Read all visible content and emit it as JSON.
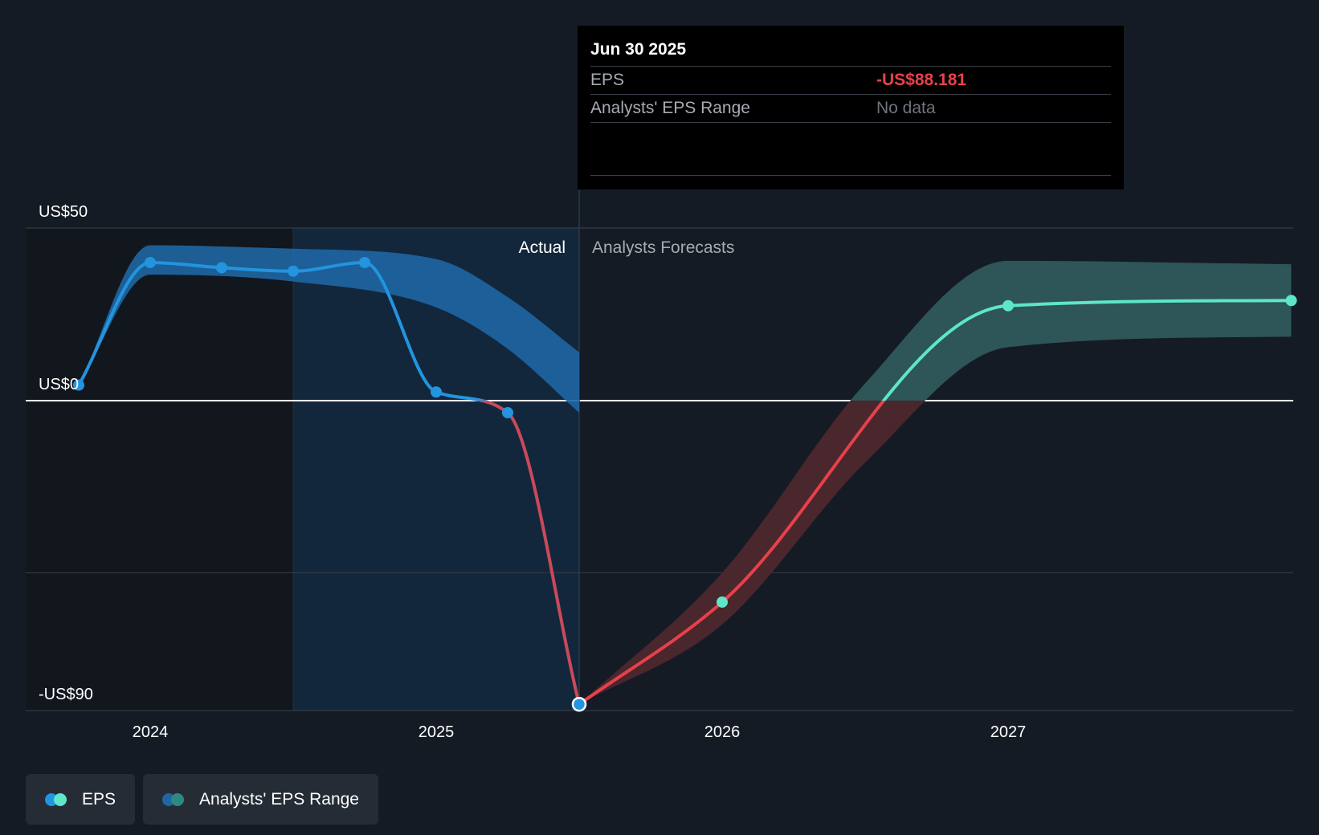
{
  "chart_data": {
    "type": "line",
    "x_axis": {
      "tick_labels": [
        "2024",
        "2025",
        "2026",
        "2027"
      ],
      "tick_years": [
        2024,
        2025,
        2026,
        2027
      ],
      "range": [
        2023.72,
        2027.99
      ]
    },
    "y_axis": {
      "tick_labels": [
        "US$50",
        "US$0",
        "-US$90"
      ],
      "tick_values": [
        50,
        0,
        -90
      ],
      "range": [
        -90,
        50
      ],
      "gridlines": [
        50,
        0,
        -50,
        -90
      ]
    },
    "section_labels": {
      "actual": "Actual",
      "forecast": "Analysts Forecasts"
    },
    "forecast_start": 2025.5,
    "highlight_start": 2024.5,
    "series": [
      {
        "name": "EPS",
        "kind": "actual",
        "points": [
          {
            "x": 2023.75,
            "y": 4.5
          },
          {
            "x": 2024.0,
            "y": 40.0
          },
          {
            "x": 2024.25,
            "y": 38.5
          },
          {
            "x": 2024.5,
            "y": 37.5
          },
          {
            "x": 2024.75,
            "y": 40.0
          },
          {
            "x": 2025.0,
            "y": 2.5
          },
          {
            "x": 2025.25,
            "y": -3.5
          },
          {
            "x": 2025.5,
            "y": -88.181
          }
        ]
      },
      {
        "name": "EPS",
        "kind": "forecast",
        "points": [
          {
            "x": 2025.5,
            "y": -88.181
          },
          {
            "x": 2026.0,
            "y": -58.5
          },
          {
            "x": 2027.0,
            "y": 27.5
          },
          {
            "x": 2027.99,
            "y": 29.0
          }
        ]
      }
    ],
    "ranges": [
      {
        "name": "Analysts' EPS Range",
        "kind": "actual",
        "upper": [
          {
            "x": 2023.75,
            "y": 4.5
          },
          {
            "x": 2024.0,
            "y": 45.0
          },
          {
            "x": 2024.5,
            "y": 44.0
          },
          {
            "x": 2025.0,
            "y": 41.0
          },
          {
            "x": 2025.25,
            "y": 30.0
          },
          {
            "x": 2025.5,
            "y": 14.0
          }
        ],
        "lower": [
          {
            "x": 2023.75,
            "y": 4.5
          },
          {
            "x": 2024.0,
            "y": 36.5
          },
          {
            "x": 2024.5,
            "y": 34.5
          },
          {
            "x": 2025.0,
            "y": 27.0
          },
          {
            "x": 2025.25,
            "y": 15.0
          },
          {
            "x": 2025.5,
            "y": -3.5
          }
        ]
      },
      {
        "name": "Analysts' EPS Range",
        "kind": "forecast",
        "upper": [
          {
            "x": 2025.5,
            "y": -88.181
          },
          {
            "x": 2026.0,
            "y": -50.0
          },
          {
            "x": 2026.5,
            "y": 5.0
          },
          {
            "x": 2027.0,
            "y": 40.5
          },
          {
            "x": 2027.99,
            "y": 39.5
          }
        ],
        "lower": [
          {
            "x": 2025.5,
            "y": -88.181
          },
          {
            "x": 2026.0,
            "y": -65.0
          },
          {
            "x": 2026.5,
            "y": -18.0
          },
          {
            "x": 2027.0,
            "y": 15.5
          },
          {
            "x": 2027.99,
            "y": 18.5
          }
        ]
      }
    ],
    "colors": {
      "actual_positive": "#2394df",
      "actual_negative": "#c94a5a",
      "forecast_positive": "#5ee6c8",
      "forecast_negative": "#e6414a",
      "band_actual": "#1f66a3",
      "band_forecast_pos": "#2e5557",
      "band_forecast_neg": "#4a262d",
      "background": "#151b24"
    }
  },
  "tooltip": {
    "date": "Jun 30 2025",
    "rows": [
      {
        "label": "EPS",
        "value": "-US$88.181"
      },
      {
        "label": "Analysts' EPS Range",
        "value": "No data"
      }
    ]
  },
  "legend": {
    "items": [
      {
        "label": "EPS",
        "colors": [
          "#2394df",
          "#5ee6c8"
        ]
      },
      {
        "label": "Analysts' EPS Range",
        "colors": [
          "#1f66a3",
          "#2e8a80"
        ]
      }
    ]
  }
}
